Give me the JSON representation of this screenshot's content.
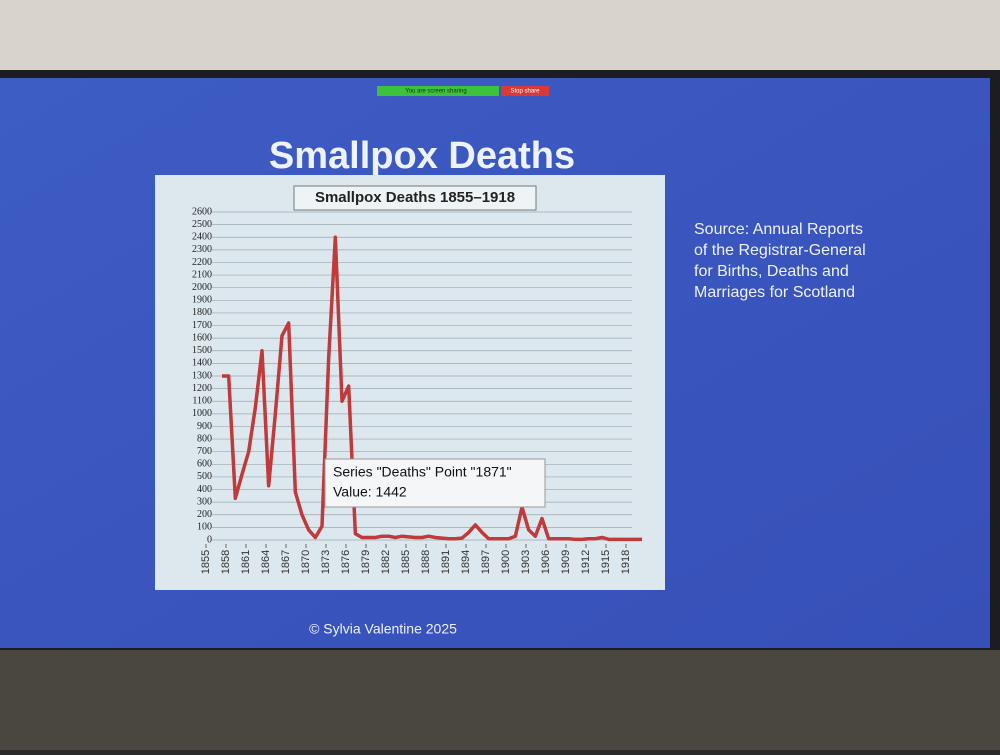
{
  "slide": {
    "title": "Smallpox Deaths",
    "source": [
      "Source: Annual Reports",
      "of the Registrar-General",
      "for Births, Deaths and",
      "Marriages for Scotland"
    ],
    "copyright": "© Sylvia Valentine 2025"
  },
  "ui": {
    "sharing": "You are screen sharing",
    "stop": "Stop share"
  },
  "chart_data": {
    "type": "line",
    "title": "Smallpox Deaths 1855–1918",
    "color": "#c0393b",
    "x": [
      1855,
      1856,
      1857,
      1858,
      1859,
      1860,
      1861,
      1862,
      1863,
      1864,
      1865,
      1866,
      1867,
      1868,
      1869,
      1870,
      1871,
      1872,
      1873,
      1874,
      1875,
      1876,
      1877,
      1878,
      1879,
      1880,
      1881,
      1882,
      1883,
      1884,
      1885,
      1886,
      1887,
      1888,
      1889,
      1890,
      1891,
      1892,
      1893,
      1894,
      1895,
      1896,
      1897,
      1898,
      1899,
      1900,
      1901,
      1902,
      1903,
      1904,
      1905,
      1906,
      1907,
      1908,
      1909,
      1910,
      1911,
      1912,
      1913,
      1914,
      1915,
      1916,
      1917,
      1918
    ],
    "values": [
      1300,
      1300,
      330,
      520,
      700,
      1050,
      1500,
      430,
      1000,
      1620,
      1720,
      380,
      200,
      80,
      20,
      110,
      1442,
      2400,
      1100,
      1220,
      50,
      20,
      20,
      20,
      30,
      30,
      20,
      30,
      25,
      20,
      20,
      30,
      20,
      15,
      10,
      10,
      15,
      60,
      120,
      60,
      10,
      10,
      10,
      10,
      30,
      260,
      80,
      30,
      170,
      10,
      10,
      10,
      10,
      5,
      5,
      10,
      10,
      20,
      5,
      5,
      5,
      5,
      5,
      5
    ],
    "xlim": [
      1855,
      1918
    ],
    "xticks": [
      1855,
      1858,
      1861,
      1864,
      1867,
      1870,
      1873,
      1876,
      1879,
      1882,
      1885,
      1888,
      1891,
      1894,
      1897,
      1900,
      1903,
      1906,
      1909,
      1912,
      1915,
      1918
    ],
    "ylim": [
      0,
      2600
    ],
    "yticks": [
      0,
      100,
      200,
      300,
      400,
      500,
      600,
      700,
      800,
      900,
      1000,
      1100,
      1200,
      1300,
      1400,
      1500,
      1600,
      1700,
      1800,
      1900,
      2000,
      2100,
      2200,
      2300,
      2400,
      2500,
      2600
    ],
    "grid": true,
    "tooltip": [
      "Series \"Deaths\" Point \"1871\"",
      "Value: 1442"
    ]
  }
}
